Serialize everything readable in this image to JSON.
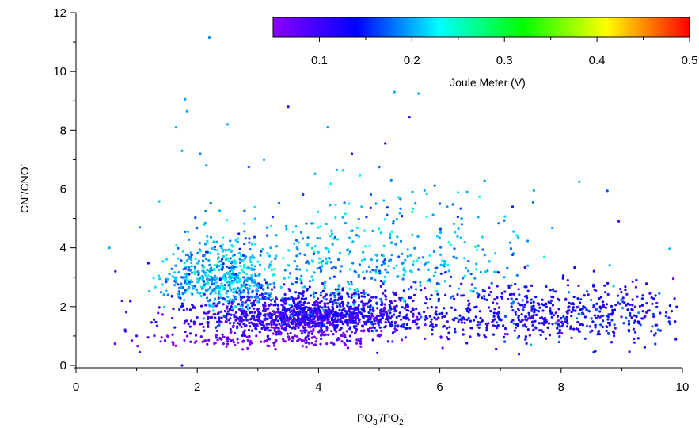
{
  "chart_data": {
    "type": "scatter",
    "xlabel": {
      "main": "PO",
      "sub1": "3",
      "sup1": "-",
      "mid": "/PO",
      "sub2": "2",
      "sup2": "-"
    },
    "ylabel": {
      "a": "CN",
      "sup1": "-",
      "b": "/CNO",
      "sup2": "-"
    },
    "xlim": [
      0,
      10
    ],
    "ylim": [
      0,
      12
    ],
    "x_ticks": [
      0,
      2,
      4,
      6,
      8,
      10
    ],
    "y_ticks": [
      0,
      2,
      4,
      6,
      8,
      10,
      12
    ],
    "grid": false,
    "colorbar": {
      "label": "Joule Meter (V)",
      "range": [
        0.05,
        0.5
      ],
      "ticks": [
        "0.1",
        "0.2",
        "0.3",
        "0.4",
        "0.5"
      ],
      "colormap": [
        "#8b00ff",
        "#0000ff",
        "#00ffff",
        "#00ff00",
        "#ffff00",
        "#ff0000"
      ],
      "placement": "top-right"
    },
    "clusters": [
      {
        "x_center": 3.9,
        "x_spread": 1.0,
        "y_center": 1.7,
        "y_spread": 0.35,
        "color_value_center": 0.11,
        "count": 1300
      },
      {
        "x_center": 2.4,
        "x_spread": 0.45,
        "y_center": 3.0,
        "y_spread": 0.55,
        "color_value_center": 0.2,
        "count": 500
      },
      {
        "x_center": 4.8,
        "x_spread": 1.4,
        "y_center": 3.6,
        "y_spread": 0.9,
        "color_value_center": 0.2,
        "count": 450
      },
      {
        "x_center": 7.8,
        "x_spread": 1.2,
        "y_center": 1.7,
        "y_spread": 0.5,
        "color_value_center": 0.13,
        "count": 600
      },
      {
        "x_center": 3.3,
        "x_spread": 1.1,
        "y_center": 0.9,
        "y_spread": 0.18,
        "color_value_center": 0.06,
        "count": 200
      }
    ],
    "outliers": [
      {
        "x": 2.2,
        "y": 11.15,
        "c": 0.19
      },
      {
        "x": 1.8,
        "y": 9.05,
        "c": 0.2
      },
      {
        "x": 1.83,
        "y": 8.65,
        "c": 0.2
      },
      {
        "x": 3.5,
        "y": 8.8,
        "c": 0.1
      },
      {
        "x": 5.5,
        "y": 8.45,
        "c": 0.11
      },
      {
        "x": 5.25,
        "y": 9.3,
        "c": 0.2
      },
      {
        "x": 5.65,
        "y": 9.25,
        "c": 0.2
      },
      {
        "x": 1.65,
        "y": 8.1,
        "c": 0.2
      },
      {
        "x": 2.5,
        "y": 8.2,
        "c": 0.2
      },
      {
        "x": 4.15,
        "y": 8.1,
        "c": 0.2
      },
      {
        "x": 5.1,
        "y": 7.55,
        "c": 0.11
      },
      {
        "x": 4.55,
        "y": 7.2,
        "c": 0.11
      },
      {
        "x": 1.75,
        "y": 7.3,
        "c": 0.2
      },
      {
        "x": 2.05,
        "y": 7.2,
        "c": 0.19
      },
      {
        "x": 2.15,
        "y": 6.8,
        "c": 0.19
      },
      {
        "x": 2.85,
        "y": 6.75,
        "c": 0.18
      },
      {
        "x": 3.1,
        "y": 7.0,
        "c": 0.2
      },
      {
        "x": 5.0,
        "y": 6.75,
        "c": 0.18
      },
      {
        "x": 5.2,
        "y": 6.3,
        "c": 0.19
      },
      {
        "x": 4.3,
        "y": 6.65,
        "c": 0.2
      },
      {
        "x": 7.55,
        "y": 5.95,
        "c": 0.2
      },
      {
        "x": 8.3,
        "y": 6.25,
        "c": 0.2
      },
      {
        "x": 6.45,
        "y": 5.9,
        "c": 0.2
      },
      {
        "x": 8.95,
        "y": 4.9,
        "c": 0.11
      },
      {
        "x": 0.55,
        "y": 4.0,
        "c": 0.2
      },
      {
        "x": 0.65,
        "y": 3.2,
        "c": 0.1
      },
      {
        "x": 1.05,
        "y": 4.7,
        "c": 0.18
      },
      {
        "x": 1.0,
        "y": 1.0,
        "c": 0.1
      },
      {
        "x": 1.05,
        "y": 0.45,
        "c": 0.11
      },
      {
        "x": 1.75,
        "y": 0.0,
        "c": 0.11
      },
      {
        "x": 7.5,
        "y": 0.7,
        "c": 0.2
      },
      {
        "x": 9.85,
        "y": 2.95,
        "c": 0.06
      },
      {
        "x": 9.2,
        "y": 0.9,
        "c": 0.06
      },
      {
        "x": 6.0,
        "y": 5.5,
        "c": 0.16
      },
      {
        "x": 7.2,
        "y": 5.4,
        "c": 0.15
      },
      {
        "x": 5.55,
        "y": 5.9,
        "c": 0.2
      }
    ]
  }
}
